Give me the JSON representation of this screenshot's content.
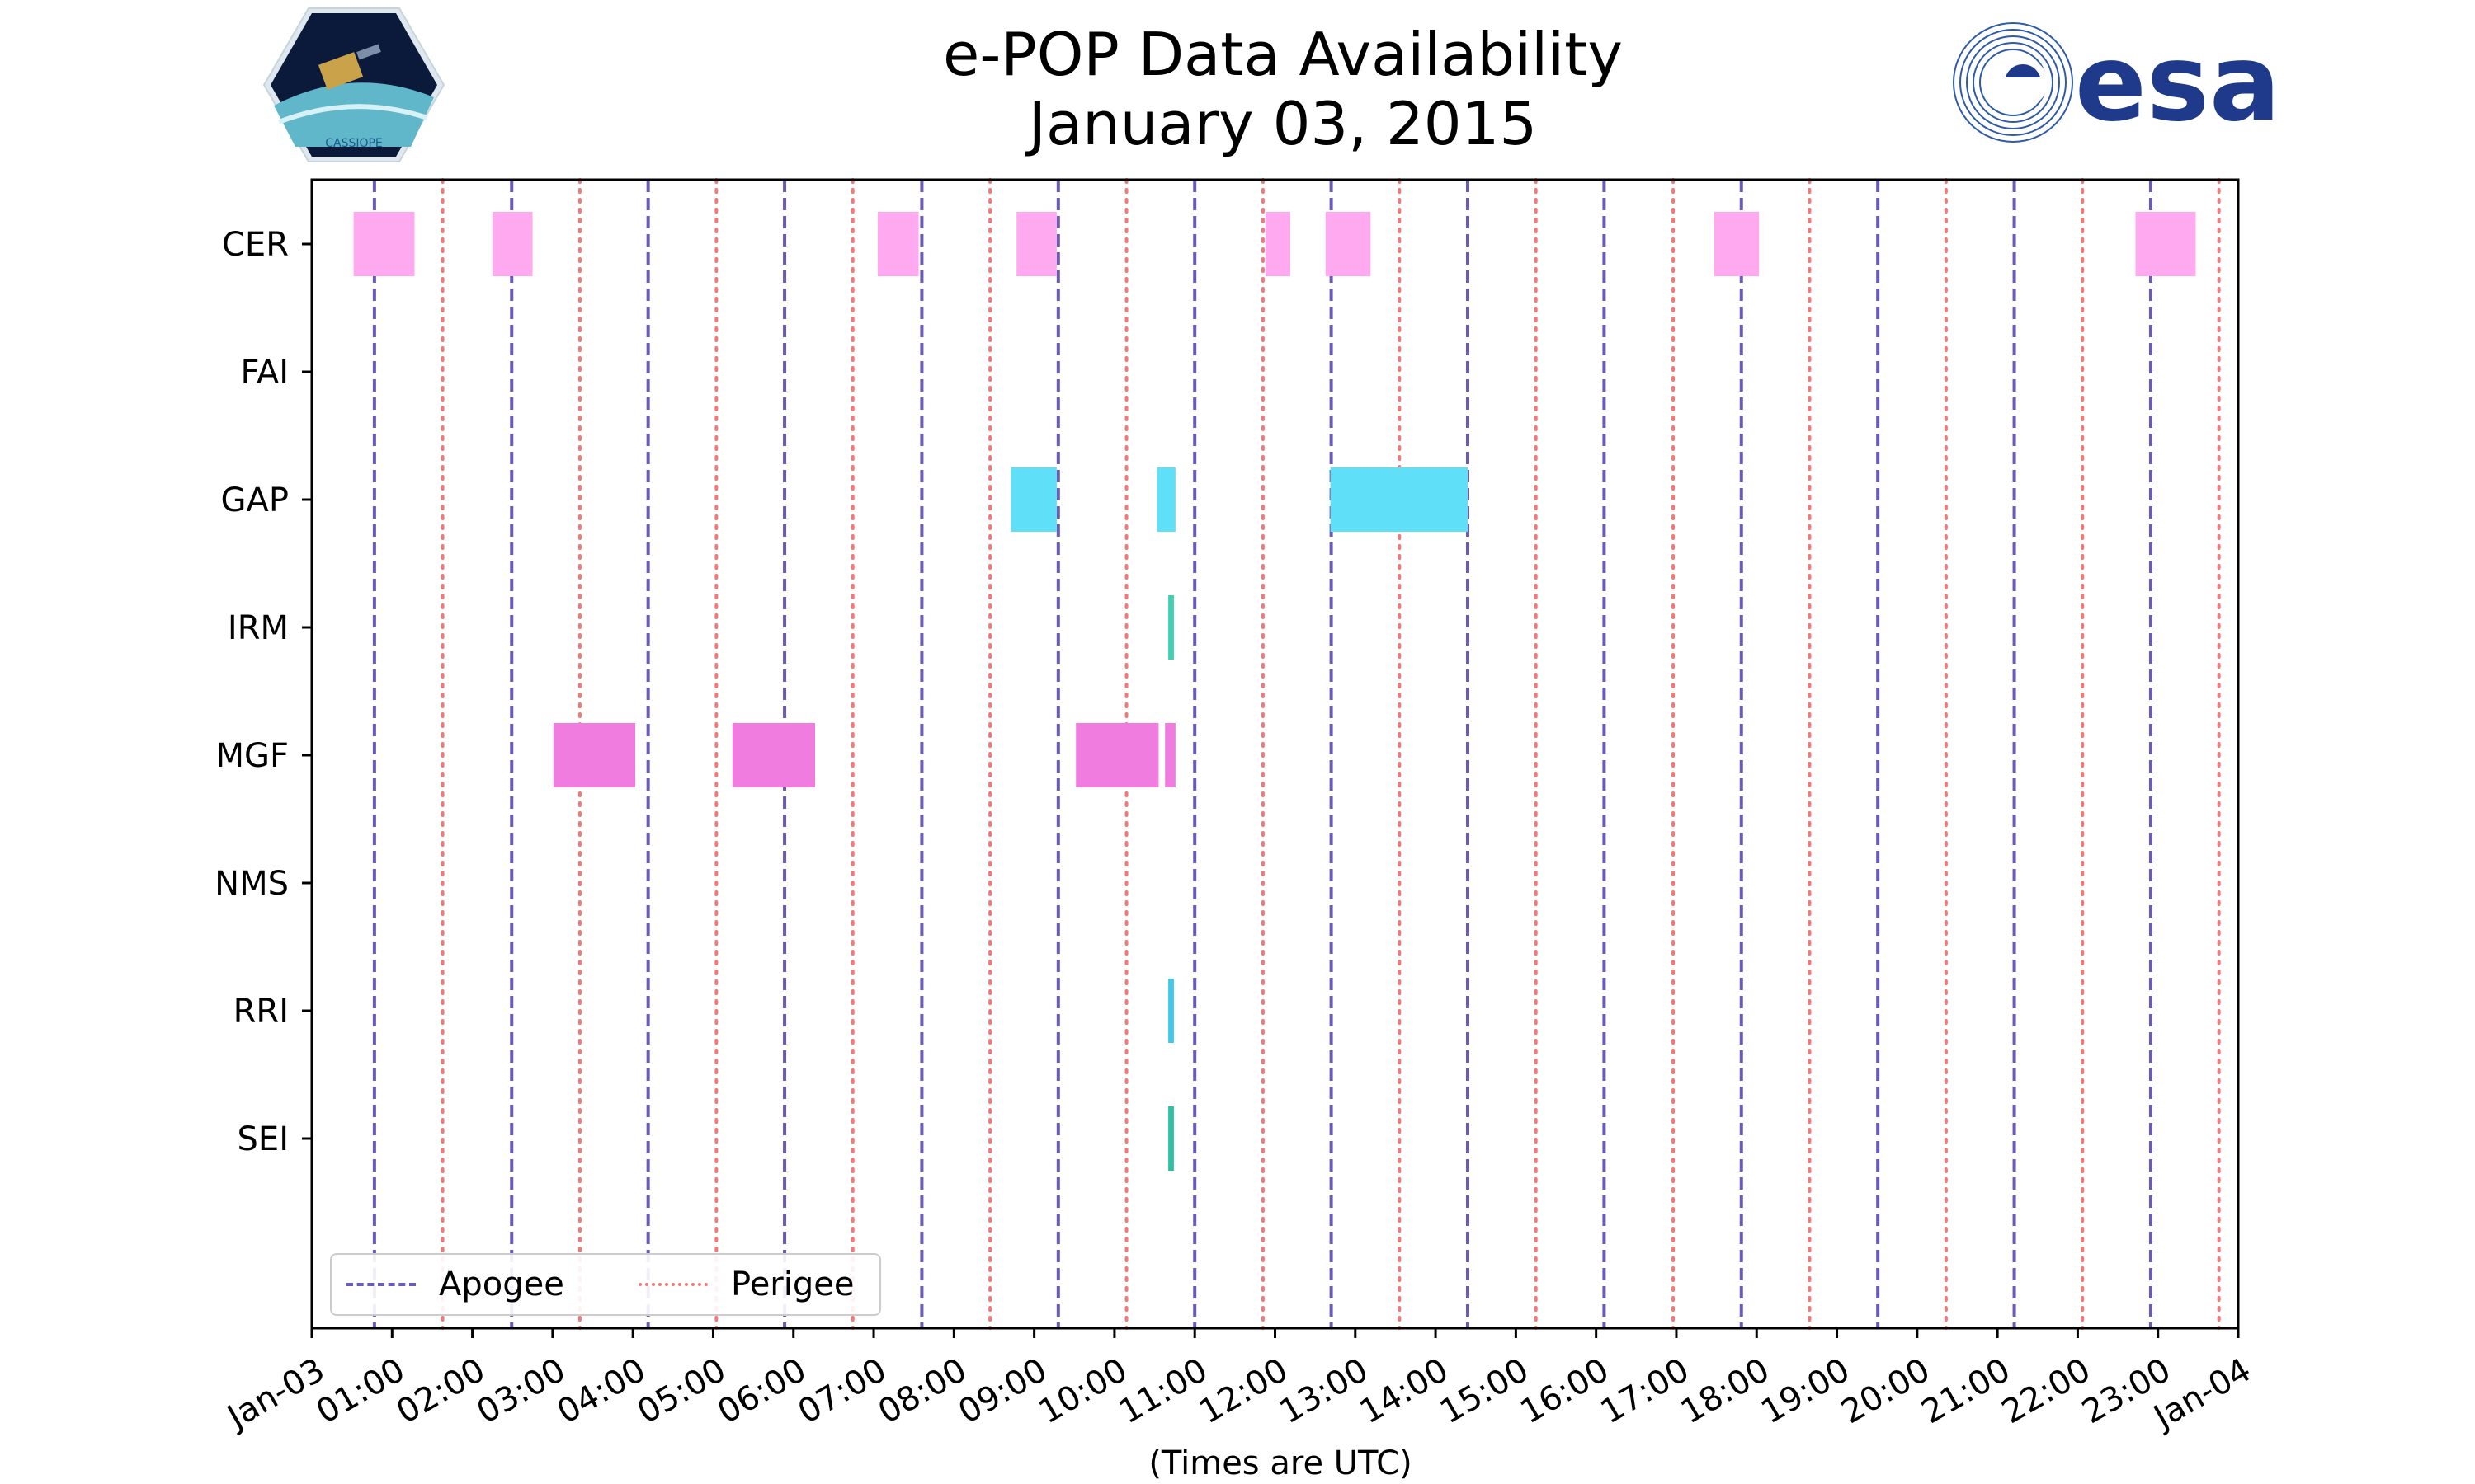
{
  "chart_data": {
    "type": "timeline",
    "title": "e-POP Data Availability",
    "subtitle": "January 03, 2015",
    "xlabel": "(Times are UTC)",
    "x_domain_hours": [
      0,
      24
    ],
    "x_tick_labels": [
      "Jan-03",
      "01:00",
      "02:00",
      "03:00",
      "04:00",
      "05:00",
      "06:00",
      "07:00",
      "08:00",
      "09:00",
      "10:00",
      "11:00",
      "12:00",
      "13:00",
      "14:00",
      "15:00",
      "16:00",
      "17:00",
      "18:00",
      "19:00",
      "20:00",
      "21:00",
      "22:00",
      "23:00",
      "Jan-04"
    ],
    "instruments": [
      "CER",
      "FAI",
      "GAP",
      "IRM",
      "MGF",
      "NMS",
      "RRI",
      "SEI"
    ],
    "segments": [
      {
        "instrument": "CER",
        "start": 0.52,
        "end": 1.28,
        "color": "#ffaaf0"
      },
      {
        "instrument": "CER",
        "start": 2.25,
        "end": 2.75,
        "color": "#ffaaf0"
      },
      {
        "instrument": "CER",
        "start": 7.05,
        "end": 7.56,
        "color": "#ffaaf0"
      },
      {
        "instrument": "CER",
        "start": 8.78,
        "end": 9.28,
        "color": "#ffaaf0"
      },
      {
        "instrument": "CER",
        "start": 11.88,
        "end": 12.19,
        "color": "#ffaaf0"
      },
      {
        "instrument": "CER",
        "start": 12.63,
        "end": 13.19,
        "color": "#ffaaf0"
      },
      {
        "instrument": "CER",
        "start": 17.47,
        "end": 18.03,
        "color": "#ffaaf0"
      },
      {
        "instrument": "CER",
        "start": 22.72,
        "end": 23.47,
        "color": "#ffaaf0"
      },
      {
        "instrument": "GAP",
        "start": 8.71,
        "end": 9.28,
        "color": "#60e0f8"
      },
      {
        "instrument": "GAP",
        "start": 10.53,
        "end": 10.76,
        "color": "#60e0f8"
      },
      {
        "instrument": "GAP",
        "start": 12.69,
        "end": 14.4,
        "color": "#60e0f8"
      },
      {
        "instrument": "IRM",
        "start": 10.67,
        "end": 10.74,
        "color": "#40d0b0"
      },
      {
        "instrument": "MGF",
        "start": 3.01,
        "end": 4.03,
        "color": "#f07ce0"
      },
      {
        "instrument": "MGF",
        "start": 5.24,
        "end": 6.27,
        "color": "#f07ce0"
      },
      {
        "instrument": "MGF",
        "start": 9.52,
        "end": 10.55,
        "color": "#f07ce0"
      },
      {
        "instrument": "MGF",
        "start": 10.63,
        "end": 10.76,
        "color": "#f07ce0"
      },
      {
        "instrument": "RRI",
        "start": 10.67,
        "end": 10.74,
        "color": "#40c8e8"
      },
      {
        "instrument": "SEI",
        "start": 10.67,
        "end": 10.74,
        "color": "#30c0a0"
      }
    ],
    "apogee_hours": [
      0.78,
      2.49,
      4.19,
      5.89,
      7.6,
      9.3,
      11.0,
      12.7,
      14.4,
      16.1,
      17.81,
      19.51,
      21.21,
      22.91
    ],
    "perigee_hours": [
      1.63,
      3.34,
      5.04,
      6.74,
      8.45,
      10.15,
      11.85,
      13.55,
      15.25,
      16.96,
      18.66,
      20.36,
      22.06,
      23.76
    ],
    "legend": {
      "apogee": "Apogee",
      "perigee": "Perigee",
      "placement": "lower-left"
    },
    "colors": {
      "apogee": "#6a5bb8",
      "perigee": "#f07a7a"
    }
  },
  "logos": {
    "left": "CASSIOPE",
    "right": "esa"
  }
}
